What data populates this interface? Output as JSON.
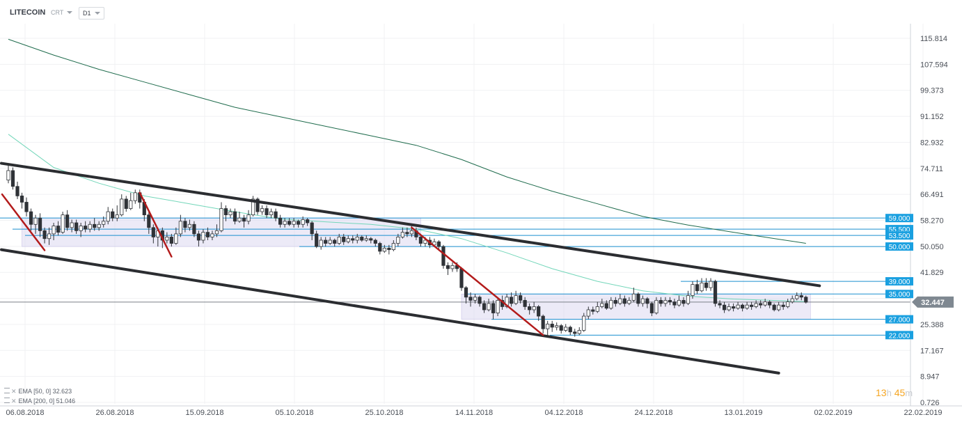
{
  "header": {
    "symbol": "LITECOIN",
    "source": "CRT",
    "timeframe": "D1"
  },
  "legend": [
    {
      "label": "EMA",
      "params": "[50, 0]",
      "value": "32.623"
    },
    {
      "label": "EMA",
      "params": "[200, 0]",
      "value": "51.046"
    }
  ],
  "timer": {
    "hours": "13",
    "h_unit": "h",
    "minutes": "45",
    "m_unit": "m"
  },
  "colors": {
    "bull": "#ffffff",
    "bear": "#2f3237",
    "candle_edge": "#2f3237",
    "ema50": "#72d6b9",
    "ema200": "#1e6b4c",
    "channel": "#2b2d31",
    "trend_red": "#b31b1b",
    "level": "#1a8fcf",
    "level_label_bg": "#1aa0e0",
    "zone": "#dcd8f0",
    "price_line": "#7a7f87",
    "price_label_bg": "#7f8891"
  },
  "chart_data": {
    "type": "candlestick",
    "x_labels": [
      "06.08.2018",
      "26.08.2018",
      "15.09.2018",
      "05.10.2018",
      "25.10.2018",
      "14.11.2018",
      "04.12.2018",
      "24.12.2018",
      "13.01.2019",
      "02.02.2019",
      "22.02.2019"
    ],
    "y_ticks": [
      "115.814",
      "107.594",
      "99.373",
      "91.152",
      "82.932",
      "74.711",
      "66.491",
      "58.270",
      "50.050",
      "41.829",
      "",
      "25.388",
      "17.167",
      "8.947",
      "0.726"
    ],
    "ylim": [
      0.726,
      115.814
    ],
    "last_price": "32.447",
    "levels": [
      {
        "label": "59.000",
        "value": 59.0
      },
      {
        "label": "55.500",
        "value": 55.5
      },
      {
        "label": "53.500",
        "value": 53.5
      },
      {
        "label": "50.000",
        "value": 50.0
      },
      {
        "label": "39.000",
        "value": 39.0
      },
      {
        "label": "35.000",
        "value": 35.0
      },
      {
        "label": "27.000",
        "value": 27.0
      },
      {
        "label": "22.000",
        "value": 22.0
      }
    ],
    "zones": [
      {
        "from_day": 3,
        "to_day": 91,
        "low": 50.0,
        "high": 59.0
      },
      {
        "from_day": 100,
        "to_day": 177,
        "low": 27.0,
        "high": 35.0
      }
    ],
    "channel_lines": [
      {
        "x1": 0,
        "y1": 76.3,
        "x2": 179,
        "y2": 37.6
      },
      {
        "x1": 0,
        "y1": 49.0,
        "x2": 170,
        "y2": 10.0
      }
    ],
    "trend_lines": [
      {
        "x1": 0,
        "y1": 66.5,
        "x2": 8,
        "y2": 48.8
      },
      {
        "x1": 29,
        "y1": 67.0,
        "x2": 36,
        "y2": 46.8
      },
      {
        "x1": 89,
        "y1": 56.0,
        "x2": 118,
        "y2": 22.0
      }
    ],
    "ema50": [
      [
        0,
        85.5
      ],
      [
        10,
        75.0
      ],
      [
        20,
        70.0
      ],
      [
        30,
        66.0
      ],
      [
        40,
        63.5
      ],
      [
        50,
        61.0
      ],
      [
        60,
        58.7
      ],
      [
        70,
        57.8
      ],
      [
        80,
        57.0
      ],
      [
        90,
        55.5
      ],
      [
        100,
        52.5
      ],
      [
        110,
        48.0
      ],
      [
        120,
        43.0
      ],
      [
        130,
        39.0
      ],
      [
        140,
        36.0
      ],
      [
        150,
        34.3
      ],
      [
        160,
        33.4
      ],
      [
        170,
        32.9
      ],
      [
        176,
        32.6
      ]
    ],
    "ema200": [
      [
        0,
        115.5
      ],
      [
        10,
        110.5
      ],
      [
        20,
        106.0
      ],
      [
        30,
        102.0
      ],
      [
        40,
        98.0
      ],
      [
        50,
        94.0
      ],
      [
        60,
        91.0
      ],
      [
        70,
        88.0
      ],
      [
        80,
        85.0
      ],
      [
        90,
        82.0
      ],
      [
        100,
        77.5
      ],
      [
        110,
        72.0
      ],
      [
        120,
        67.5
      ],
      [
        130,
        63.5
      ],
      [
        140,
        59.5
      ],
      [
        150,
        56.8
      ],
      [
        160,
        54.5
      ],
      [
        170,
        52.3
      ],
      [
        176,
        51.0
      ]
    ],
    "candles": [
      [
        0,
        71.0,
        74.0,
        76.0,
        70.0
      ],
      [
        1,
        74.0,
        69.0,
        75.0,
        68.0
      ],
      [
        2,
        69.0,
        66.0,
        70.5,
        65.0
      ],
      [
        3,
        66.0,
        64.0,
        67.0,
        62.0
      ],
      [
        4,
        64.0,
        61.0,
        65.5,
        59.5
      ],
      [
        5,
        61.0,
        57.0,
        62.0,
        55.0
      ],
      [
        6,
        57.0,
        59.0,
        60.0,
        54.0
      ],
      [
        7,
        59.0,
        55.0,
        60.5,
        53.0
      ],
      [
        8,
        55.0,
        52.5,
        56.0,
        51.0
      ],
      [
        9,
        52.5,
        54.0,
        56.0,
        50.5
      ],
      [
        10,
        54.0,
        56.5,
        57.5,
        52.0
      ],
      [
        11,
        56.5,
        54.5,
        58.0,
        53.5
      ],
      [
        12,
        54.5,
        60.0,
        61.0,
        54.0
      ],
      [
        13,
        60.0,
        56.0,
        61.5,
        55.0
      ],
      [
        14,
        56.0,
        57.5,
        58.5,
        54.5
      ],
      [
        15,
        57.5,
        55.0,
        58.5,
        54.0
      ],
      [
        16,
        55.0,
        56.5,
        57.5,
        53.0
      ],
      [
        17,
        56.5,
        55.5,
        58.0,
        54.5
      ],
      [
        18,
        55.5,
        57.0,
        58.0,
        54.5
      ],
      [
        19,
        57.0,
        56.0,
        59.0,
        55.0
      ],
      [
        20,
        56.0,
        57.0,
        58.0,
        55.0
      ],
      [
        21,
        57.0,
        58.0,
        59.5,
        56.0
      ],
      [
        22,
        58.0,
        61.0,
        62.5,
        57.0
      ],
      [
        23,
        61.0,
        59.0,
        62.0,
        58.0
      ],
      [
        24,
        59.0,
        60.0,
        63.0,
        58.0
      ],
      [
        25,
        60.0,
        65.0,
        66.5,
        59.5
      ],
      [
        26,
        65.0,
        62.0,
        66.0,
        61.0
      ],
      [
        27,
        62.0,
        64.5,
        67.0,
        61.5
      ],
      [
        28,
        64.5,
        67.0,
        68.0,
        63.5
      ],
      [
        29,
        67.0,
        64.0,
        68.0,
        62.0
      ],
      [
        30,
        64.0,
        60.0,
        65.0,
        58.0
      ],
      [
        31,
        60.0,
        56.0,
        61.0,
        54.0
      ],
      [
        32,
        56.0,
        53.0,
        57.0,
        51.0
      ],
      [
        33,
        53.0,
        55.0,
        56.0,
        50.0
      ],
      [
        34,
        55.0,
        52.0,
        56.0,
        49.5
      ],
      [
        35,
        52.0,
        53.0,
        54.5,
        51.0
      ],
      [
        36,
        53.0,
        51.0,
        54.0,
        50.0
      ],
      [
        37,
        51.0,
        54.0,
        56.0,
        50.5
      ],
      [
        38,
        54.0,
        58.0,
        60.0,
        53.0
      ],
      [
        39,
        58.0,
        56.0,
        59.0,
        54.5
      ],
      [
        40,
        56.0,
        57.0,
        58.5,
        55.0
      ],
      [
        41,
        57.0,
        54.0,
        58.0,
        53.0
      ],
      [
        42,
        54.0,
        52.0,
        55.0,
        50.0
      ],
      [
        43,
        52.0,
        54.5,
        55.5,
        51.0
      ],
      [
        44,
        54.5,
        53.0,
        56.0,
        52.0
      ],
      [
        45,
        53.0,
        54.0,
        55.0,
        52.0
      ],
      [
        46,
        54.0,
        55.0,
        57.0,
        53.0
      ],
      [
        47,
        55.0,
        62.0,
        64.0,
        54.5
      ],
      [
        48,
        62.0,
        60.0,
        63.0,
        58.0
      ],
      [
        49,
        60.0,
        61.0,
        62.0,
        59.0
      ],
      [
        50,
        61.0,
        58.0,
        62.0,
        57.0
      ],
      [
        51,
        58.0,
        59.0,
        61.0,
        57.5
      ],
      [
        52,
        59.0,
        58.0,
        60.0,
        56.0
      ],
      [
        53,
        58.0,
        60.0,
        61.5,
        57.0
      ],
      [
        54,
        60.0,
        65.0,
        66.0,
        59.5
      ],
      [
        55,
        65.0,
        61.0,
        65.5,
        60.0
      ],
      [
        56,
        61.0,
        62.0,
        63.0,
        60.0
      ],
      [
        57,
        62.0,
        60.0,
        63.0,
        59.0
      ],
      [
        58,
        60.0,
        61.0,
        62.0,
        59.0
      ],
      [
        59,
        61.0,
        59.0,
        62.0,
        58.0
      ],
      [
        60,
        59.0,
        57.0,
        60.0,
        56.0
      ],
      [
        61,
        57.0,
        58.0,
        59.0,
        56.0
      ],
      [
        62,
        58.0,
        57.0,
        59.0,
        56.5
      ],
      [
        63,
        57.0,
        58.0,
        59.0,
        56.0
      ],
      [
        64,
        58.0,
        57.0,
        58.5,
        56.0
      ],
      [
        65,
        57.0,
        58.5,
        59.5,
        56.0
      ],
      [
        66,
        58.5,
        57.5,
        59.0,
        56.5
      ],
      [
        67,
        57.5,
        54.0,
        58.0,
        52.0
      ],
      [
        68,
        54.0,
        50.0,
        55.0,
        49.5
      ],
      [
        69,
        50.0,
        52.0,
        53.0,
        49.0
      ],
      [
        70,
        52.0,
        51.0,
        53.0,
        50.0
      ],
      [
        71,
        51.0,
        52.0,
        53.0,
        50.5
      ],
      [
        72,
        52.0,
        51.0,
        52.5,
        50.0
      ],
      [
        73,
        51.0,
        53.0,
        54.0,
        50.5
      ],
      [
        74,
        53.0,
        51.5,
        54.0,
        50.5
      ],
      [
        75,
        51.5,
        52.5,
        53.5,
        51.0
      ],
      [
        76,
        52.5,
        52.0,
        53.5,
        51.0
      ],
      [
        77,
        52.0,
        53.0,
        54.0,
        51.0
      ],
      [
        78,
        53.0,
        52.0,
        53.5,
        51.5
      ],
      [
        79,
        52.0,
        52.5,
        53.5,
        51.5
      ],
      [
        80,
        52.5,
        52.0,
        53.0,
        51.0
      ],
      [
        81,
        52.0,
        51.0,
        52.5,
        50.0
      ],
      [
        82,
        51.0,
        48.5,
        51.5,
        47.5
      ],
      [
        83,
        48.5,
        49.5,
        50.5,
        48.0
      ],
      [
        84,
        49.5,
        49.0,
        50.5,
        47.5
      ],
      [
        85,
        49.0,
        51.0,
        52.0,
        48.5
      ],
      [
        86,
        51.0,
        53.0,
        54.0,
        50.0
      ],
      [
        87,
        53.0,
        54.5,
        56.0,
        52.5
      ],
      [
        88,
        54.5,
        54.0,
        56.0,
        53.0
      ],
      [
        89,
        54.0,
        55.0,
        56.5,
        53.0
      ],
      [
        90,
        55.0,
        53.0,
        56.0,
        52.0
      ],
      [
        91,
        53.0,
        51.0,
        54.0,
        50.0
      ],
      [
        92,
        51.0,
        52.0,
        53.0,
        50.0
      ],
      [
        93,
        52.0,
        50.5,
        53.0,
        49.5
      ],
      [
        94,
        50.5,
        51.5,
        52.5,
        50.0
      ],
      [
        95,
        51.5,
        50.0,
        52.0,
        49.0
      ],
      [
        96,
        50.0,
        44.0,
        50.5,
        43.0
      ],
      [
        97,
        44.0,
        43.0,
        45.0,
        41.0
      ],
      [
        98,
        43.0,
        44.0,
        45.0,
        42.0
      ],
      [
        99,
        44.0,
        43.0,
        45.0,
        42.0
      ],
      [
        100,
        43.0,
        37.0,
        43.5,
        36.0
      ],
      [
        101,
        37.0,
        34.0,
        37.5,
        32.0
      ],
      [
        102,
        34.0,
        33.0,
        35.5,
        31.0
      ],
      [
        103,
        33.0,
        34.0,
        35.0,
        32.0
      ],
      [
        104,
        34.0,
        32.0,
        34.5,
        31.0
      ],
      [
        105,
        32.0,
        30.0,
        33.0,
        29.0
      ],
      [
        106,
        30.0,
        32.0,
        33.5,
        29.5
      ],
      [
        107,
        32.0,
        29.0,
        33.0,
        27.0
      ],
      [
        108,
        29.0,
        33.0,
        34.0,
        28.0
      ],
      [
        109,
        33.0,
        31.0,
        34.5,
        30.0
      ],
      [
        110,
        31.0,
        34.0,
        35.0,
        30.5
      ],
      [
        111,
        34.0,
        32.0,
        35.5,
        31.0
      ],
      [
        112,
        32.0,
        34.5,
        36.0,
        31.5
      ],
      [
        113,
        34.5,
        33.0,
        35.5,
        32.0
      ],
      [
        114,
        33.0,
        31.0,
        34.0,
        30.0
      ],
      [
        115,
        31.0,
        30.0,
        32.0,
        28.5
      ],
      [
        116,
        30.0,
        31.0,
        32.5,
        29.0
      ],
      [
        117,
        31.0,
        28.0,
        31.5,
        26.5
      ],
      [
        118,
        28.0,
        24.0,
        28.5,
        22.5
      ],
      [
        119,
        24.0,
        25.5,
        26.5,
        22.0
      ],
      [
        120,
        25.5,
        24.5,
        26.5,
        23.0
      ],
      [
        121,
        24.5,
        25.0,
        26.0,
        23.5
      ],
      [
        122,
        25.0,
        23.5,
        25.5,
        22.5
      ],
      [
        123,
        23.5,
        24.5,
        25.5,
        23.0
      ],
      [
        124,
        24.5,
        23.0,
        25.0,
        22.0
      ],
      [
        125,
        23.0,
        22.5,
        24.0,
        21.5
      ],
      [
        126,
        22.5,
        23.5,
        24.5,
        22.0
      ],
      [
        127,
        23.5,
        28.0,
        29.0,
        23.0
      ],
      [
        128,
        28.0,
        30.0,
        31.0,
        27.0
      ],
      [
        129,
        30.0,
        29.5,
        31.0,
        28.5
      ],
      [
        130,
        29.5,
        31.0,
        32.5,
        29.0
      ],
      [
        131,
        31.0,
        32.0,
        33.5,
        30.5
      ],
      [
        132,
        32.0,
        30.5,
        33.0,
        30.0
      ],
      [
        133,
        30.5,
        33.0,
        34.0,
        30.0
      ],
      [
        134,
        33.0,
        32.0,
        34.0,
        31.0
      ],
      [
        135,
        32.0,
        33.5,
        35.0,
        31.5
      ],
      [
        136,
        33.5,
        32.0,
        34.5,
        31.0
      ],
      [
        137,
        32.0,
        33.0,
        34.0,
        31.5
      ],
      [
        138,
        33.0,
        35.0,
        37.0,
        32.5
      ],
      [
        139,
        35.0,
        32.0,
        35.5,
        31.0
      ],
      [
        140,
        32.0,
        33.5,
        34.5,
        31.0
      ],
      [
        141,
        33.5,
        32.0,
        34.0,
        30.5
      ],
      [
        142,
        32.0,
        29.0,
        32.5,
        28.0
      ],
      [
        143,
        29.0,
        33.0,
        34.0,
        28.5
      ],
      [
        144,
        33.0,
        32.0,
        34.0,
        31.0
      ],
      [
        145,
        32.0,
        33.0,
        34.0,
        31.0
      ],
      [
        146,
        33.0,
        32.5,
        34.0,
        31.5
      ],
      [
        147,
        32.5,
        31.5,
        33.5,
        30.5
      ],
      [
        148,
        31.5,
        33.0,
        34.5,
        31.0
      ],
      [
        149,
        33.0,
        32.0,
        34.0,
        31.0
      ],
      [
        150,
        32.0,
        34.5,
        36.0,
        31.5
      ],
      [
        151,
        34.5,
        38.0,
        39.0,
        33.5
      ],
      [
        152,
        38.0,
        36.0,
        39.5,
        35.0
      ],
      [
        153,
        36.0,
        38.5,
        40.0,
        35.5
      ],
      [
        154,
        38.5,
        37.0,
        40.0,
        36.0
      ],
      [
        155,
        37.0,
        39.0,
        40.0,
        36.0
      ],
      [
        156,
        39.0,
        32.0,
        39.5,
        31.0
      ],
      [
        157,
        32.0,
        31.5,
        33.0,
        30.5
      ],
      [
        158,
        31.5,
        30.0,
        32.5,
        29.0
      ],
      [
        159,
        30.0,
        31.0,
        32.0,
        29.5
      ],
      [
        160,
        31.0,
        30.5,
        32.0,
        29.5
      ],
      [
        161,
        30.5,
        31.5,
        32.5,
        30.0
      ],
      [
        162,
        31.5,
        30.5,
        32.0,
        29.5
      ],
      [
        163,
        30.5,
        31.5,
        32.5,
        30.0
      ],
      [
        164,
        31.5,
        31.0,
        32.5,
        30.0
      ],
      [
        165,
        31.0,
        32.0,
        33.0,
        30.5
      ],
      [
        166,
        32.0,
        31.5,
        33.0,
        30.5
      ],
      [
        167,
        31.5,
        32.5,
        33.5,
        31.0
      ],
      [
        168,
        32.5,
        31.5,
        33.0,
        30.5
      ],
      [
        169,
        31.5,
        30.0,
        32.0,
        29.5
      ],
      [
        170,
        30.0,
        31.5,
        32.5,
        29.5
      ],
      [
        171,
        31.5,
        31.0,
        32.5,
        30.0
      ],
      [
        172,
        31.0,
        32.5,
        33.5,
        30.5
      ],
      [
        173,
        32.5,
        33.5,
        34.5,
        32.0
      ],
      [
        174,
        33.5,
        34.5,
        35.5,
        33.0
      ],
      [
        175,
        34.5,
        34.0,
        35.5,
        33.0
      ],
      [
        176,
        34.0,
        32.4,
        34.5,
        32.0
      ]
    ]
  }
}
